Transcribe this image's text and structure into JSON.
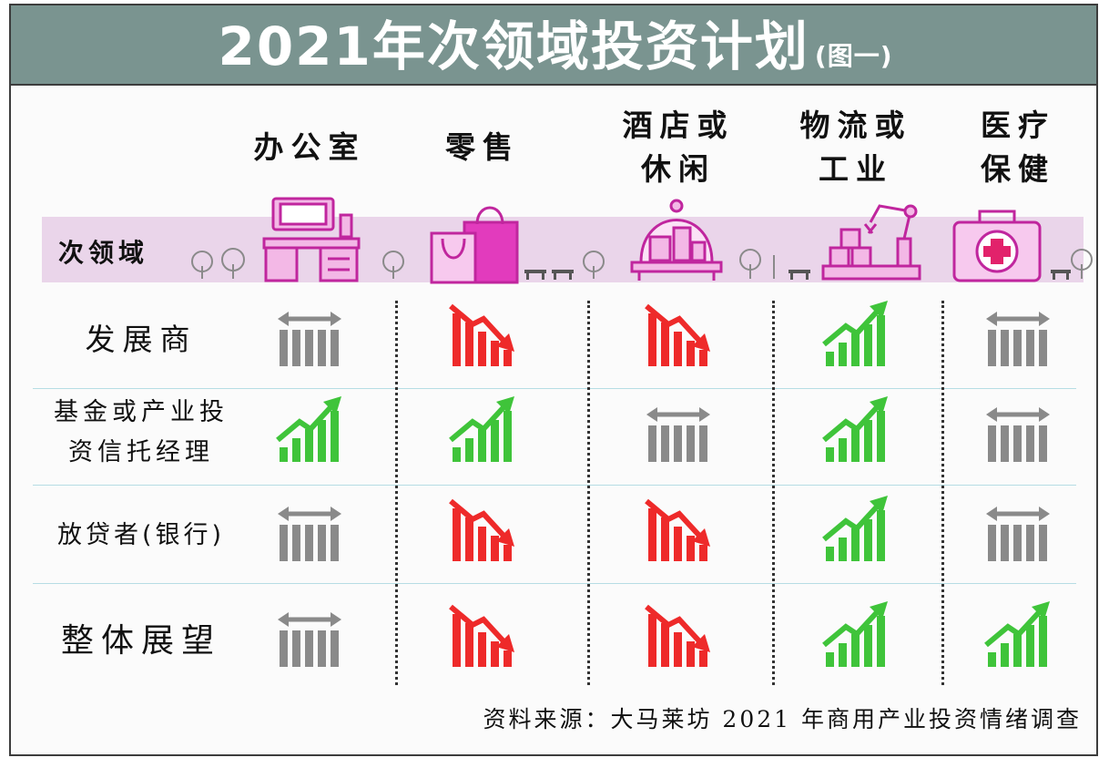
{
  "header": {
    "title": "2021年次领域投资计划",
    "subtitle": "(图一)"
  },
  "sector_row_label": "次领域",
  "footer": {
    "source": "资料来源：大马莱坊 2021 年商用产业投资情绪调查"
  },
  "icons": [
    "office-desk-icon",
    "shopping-bag-icon",
    "hotel-bell-icon",
    "factory-robot-arm-icon",
    "medical-kit-icon"
  ],
  "colors": {
    "title_bar": "#7a9490",
    "up": "#3fc43a",
    "down": "#ee2a2a",
    "neutral": "#8a8a8a",
    "sector_strip": "#ead5ea"
  },
  "chart_data": {
    "type": "table",
    "title": "2021年次领域投资计划",
    "subtitle": "(图一)",
    "columns": [
      "办公室",
      "零售",
      "酒店或休闲",
      "物流或工业",
      "医疗保健"
    ],
    "column_display": [
      "办公室",
      "零售",
      "酒店或\n休闲",
      "物流或\n工业",
      "医疗\n保健"
    ],
    "rows": [
      {
        "label": "发展商",
        "values": [
          "neutral",
          "down",
          "down",
          "up",
          "neutral"
        ]
      },
      {
        "label": "基金或产业投资信托经理",
        "label_lines": [
          "基金或产业投",
          "资信托经理"
        ],
        "values": [
          "up",
          "up",
          "neutral",
          "up",
          "neutral"
        ]
      },
      {
        "label": "放贷者(银行)",
        "values": [
          "neutral",
          "down",
          "down",
          "up",
          "neutral"
        ]
      },
      {
        "label": "整体展望",
        "values": [
          "neutral",
          "down",
          "down",
          "up",
          "up"
        ]
      }
    ],
    "legend": {
      "up": "increase",
      "down": "decrease",
      "neutral": "unchanged"
    }
  }
}
